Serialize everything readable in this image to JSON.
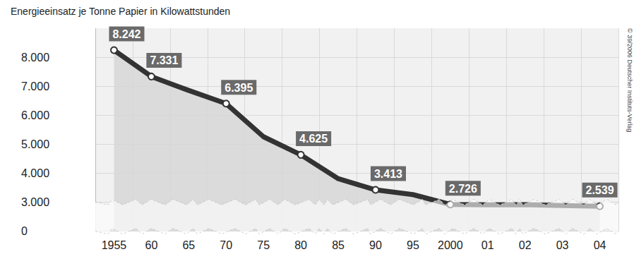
{
  "chart_data": {
    "type": "line",
    "title": "Energieeinsatz je Tonne Papier in Kilowattstunden",
    "source": "© 39/2006 Deutscher Instituts-Verlag",
    "categories": [
      "1955",
      "60",
      "65",
      "70",
      "75",
      "80",
      "85",
      "90",
      "95",
      "2000",
      "01",
      "02",
      "03",
      "04"
    ],
    "values": [
      8242,
      7331,
      6850,
      6395,
      5250,
      4625,
      3800,
      3413,
      3250,
      2726,
      2680,
      2700,
      2620,
      2539
    ],
    "value_labels": [
      "8.242",
      "7.331",
      null,
      "6.395",
      null,
      "4.625",
      null,
      "3.413",
      null,
      "2.726",
      null,
      null,
      null,
      "2.539"
    ],
    "data_labels": true,
    "color": "#333333",
    "ylim": [
      0,
      9000
    ],
    "yticks": [
      0,
      {
        "value": 3000,
        "label": "3.000"
      },
      {
        "value": 4000,
        "label": "4.000"
      },
      {
        "value": 5000,
        "label": "5.000"
      },
      {
        "value": 6000,
        "label": "6.000"
      },
      {
        "value": 7000,
        "label": "7.000"
      },
      {
        "value": 8000,
        "label": "8.000"
      }
    ],
    "grid": true
  }
}
